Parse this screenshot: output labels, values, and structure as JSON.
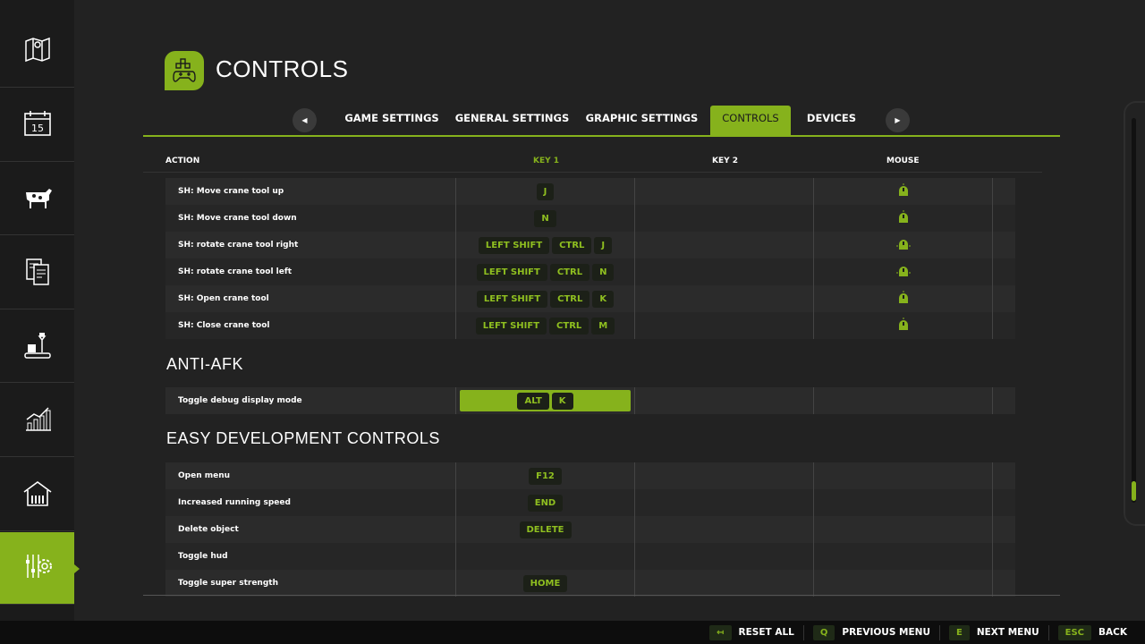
{
  "sidebar": {
    "items": [
      {
        "icon": "map-icon"
      },
      {
        "icon": "calendar-icon",
        "label": "15"
      },
      {
        "icon": "cow-icon"
      },
      {
        "icon": "contracts-icon"
      },
      {
        "icon": "production-icon"
      },
      {
        "icon": "statistics-icon"
      },
      {
        "icon": "animals-barn-icon"
      },
      {
        "icon": "settings-icon",
        "active": true
      }
    ]
  },
  "header": {
    "title": "CONTROLS",
    "icon": "gamepad-icon"
  },
  "tabs": [
    {
      "label": "GAME SETTINGS"
    },
    {
      "label": "GENERAL SETTINGS"
    },
    {
      "label": "GRAPHIC SETTINGS"
    },
    {
      "label": "CONTROLS",
      "active": true
    },
    {
      "label": "DEVICES"
    }
  ],
  "columns": {
    "action": "ACTION",
    "key1": "KEY 1",
    "key2": "KEY 2",
    "mouse": "MOUSE"
  },
  "groups": [
    {
      "title": "",
      "rows": [
        {
          "action": "SH: Move crane tool up",
          "key1": [
            "J"
          ],
          "mouse": "mouse-scroll-up-icon"
        },
        {
          "action": "SH: Move crane tool down",
          "key1": [
            "N"
          ],
          "mouse": "mouse-scroll-down-icon"
        },
        {
          "action": "SH: rotate crane tool right",
          "key1": [
            "LEFT SHIFT",
            "CTRL",
            "J"
          ],
          "mouse": "mouse-move-right-icon"
        },
        {
          "action": "SH: rotate crane tool left",
          "key1": [
            "LEFT SHIFT",
            "CTRL",
            "N"
          ],
          "mouse": "mouse-move-left-icon"
        },
        {
          "action": "SH: Open crane tool",
          "key1": [
            "LEFT SHIFT",
            "CTRL",
            "K"
          ],
          "mouse": "mouse-scroll-up-icon"
        },
        {
          "action": "SH: Close crane tool",
          "key1": [
            "LEFT SHIFT",
            "CTRL",
            "M"
          ],
          "mouse": "mouse-scroll-down-icon"
        }
      ]
    },
    {
      "title": "ANTI-AFK",
      "rows": [
        {
          "action": "Toggle debug display mode",
          "key1": [
            "ALT",
            "K"
          ],
          "selected": true
        }
      ]
    },
    {
      "title": "EASY DEVELOPMENT CONTROLS",
      "rows": [
        {
          "action": "Open menu",
          "key1": [
            "F12"
          ]
        },
        {
          "action": "Increased running speed",
          "key1": [
            "END"
          ]
        },
        {
          "action": "Delete object",
          "key1": [
            "DELETE"
          ]
        },
        {
          "action": "Toggle hud",
          "key1": []
        },
        {
          "action": "Toggle super strength",
          "key1": [
            "HOME"
          ]
        }
      ]
    }
  ],
  "footer": [
    {
      "key": "↤",
      "label": "RESET ALL"
    },
    {
      "key": "Q",
      "label": "PREVIOUS MENU"
    },
    {
      "key": "E",
      "label": "NEXT MENU"
    },
    {
      "key": "ESC",
      "label": "BACK"
    }
  ],
  "colors": {
    "accent": "#86b21c",
    "background": "#222222"
  }
}
